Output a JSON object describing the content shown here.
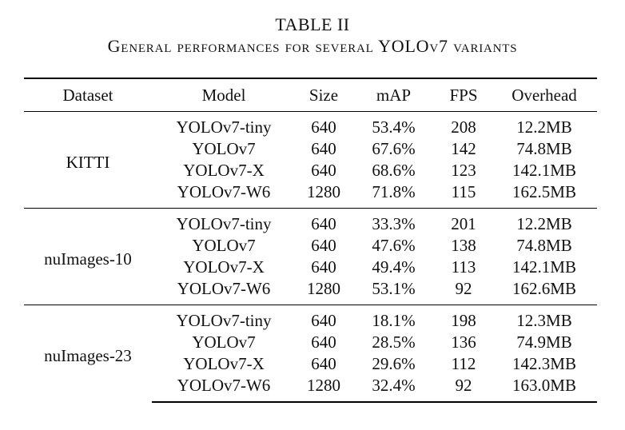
{
  "caption": {
    "label": "TABLE II",
    "title": "General performances for several YOLOv7 variants"
  },
  "table": {
    "headers": [
      "Dataset",
      "Model",
      "Size",
      "mAP",
      "FPS",
      "Overhead"
    ],
    "groups": [
      {
        "dataset": "KITTI",
        "rows": [
          [
            "YOLOv7-tiny",
            "640",
            "53.4%",
            "208",
            "12.2MB"
          ],
          [
            "YOLOv7",
            "640",
            "67.6%",
            "142",
            "74.8MB"
          ],
          [
            "YOLOv7-X",
            "640",
            "68.6%",
            "123",
            "142.1MB"
          ],
          [
            "YOLOv7-W6",
            "1280",
            "71.8%",
            "115",
            "162.5MB"
          ]
        ]
      },
      {
        "dataset": "nuImages-10",
        "rows": [
          [
            "YOLOv7-tiny",
            "640",
            "33.3%",
            "201",
            "12.2MB"
          ],
          [
            "YOLOv7",
            "640",
            "47.6%",
            "138",
            "74.8MB"
          ],
          [
            "YOLOv7-X",
            "640",
            "49.4%",
            "113",
            "142.1MB"
          ],
          [
            "YOLOv7-W6",
            "1280",
            "53.1%",
            "92",
            "162.6MB"
          ]
        ]
      },
      {
        "dataset": "nuImages-23",
        "rows": [
          [
            "YOLOv7-tiny",
            "640",
            "18.1%",
            "198",
            "12.3MB"
          ],
          [
            "YOLOv7",
            "640",
            "28.5%",
            "136",
            "74.9MB"
          ],
          [
            "YOLOv7-X",
            "640",
            "29.6%",
            "112",
            "142.3MB"
          ],
          [
            "YOLOv7-W6",
            "1280",
            "32.4%",
            "92",
            "163.0MB"
          ]
        ]
      }
    ]
  }
}
